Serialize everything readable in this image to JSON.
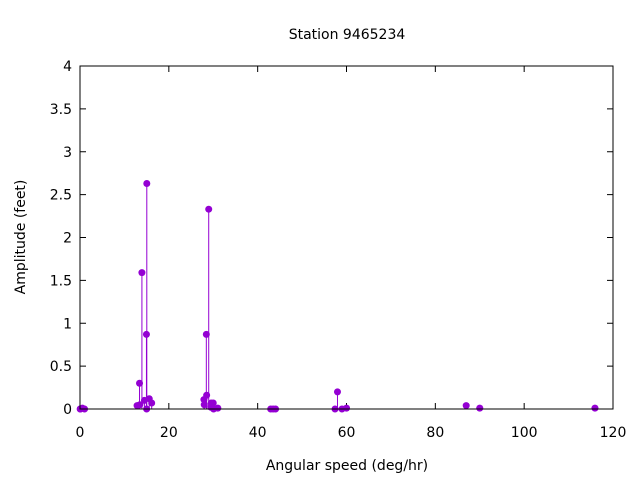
{
  "chart_data": {
    "type": "scatter",
    "style": "impulses-with-points",
    "title": "Station 9465234",
    "xlabel": "Angular speed (deg/hr)",
    "ylabel": "Amplitude (feet)",
    "xlim": [
      0,
      120
    ],
    "ylim": [
      0,
      4
    ],
    "xticks": [
      0,
      20,
      40,
      60,
      80,
      100,
      120
    ],
    "yticks": [
      0,
      0.5,
      1,
      1.5,
      2,
      2.5,
      3,
      3.5,
      4
    ],
    "grid": false,
    "legend": "none",
    "color": "#9400d3",
    "points": [
      {
        "x": 0.04,
        "y": 0.0
      },
      {
        "x": 0.08,
        "y": 0.0
      },
      {
        "x": 0.54,
        "y": 0.01
      },
      {
        "x": 1.02,
        "y": 0.0
      },
      {
        "x": 12.85,
        "y": 0.04
      },
      {
        "x": 13.4,
        "y": 0.3
      },
      {
        "x": 13.47,
        "y": 0.05
      },
      {
        "x": 13.94,
        "y": 1.59
      },
      {
        "x": 14.5,
        "y": 0.1
      },
      {
        "x": 14.96,
        "y": 0.87
      },
      {
        "x": 15.0,
        "y": 0.0
      },
      {
        "x": 15.04,
        "y": 2.63
      },
      {
        "x": 15.59,
        "y": 0.12
      },
      {
        "x": 16.14,
        "y": 0.07
      },
      {
        "x": 27.9,
        "y": 0.11
      },
      {
        "x": 27.97,
        "y": 0.05
      },
      {
        "x": 28.44,
        "y": 0.87
      },
      {
        "x": 28.51,
        "y": 0.16
      },
      {
        "x": 28.98,
        "y": 2.33
      },
      {
        "x": 29.46,
        "y": 0.02
      },
      {
        "x": 29.53,
        "y": 0.07
      },
      {
        "x": 30.0,
        "y": 0.07
      },
      {
        "x": 30.08,
        "y": 0.0
      },
      {
        "x": 31.02,
        "y": 0.01
      },
      {
        "x": 42.93,
        "y": 0.0
      },
      {
        "x": 43.48,
        "y": 0.0
      },
      {
        "x": 44.03,
        "y": 0.0
      },
      {
        "x": 57.42,
        "y": 0.0
      },
      {
        "x": 57.97,
        "y": 0.2
      },
      {
        "x": 58.98,
        "y": 0.0
      },
      {
        "x": 60.0,
        "y": 0.01
      },
      {
        "x": 86.95,
        "y": 0.04
      },
      {
        "x": 90.0,
        "y": 0.01
      },
      {
        "x": 115.94,
        "y": 0.01
      }
    ]
  }
}
